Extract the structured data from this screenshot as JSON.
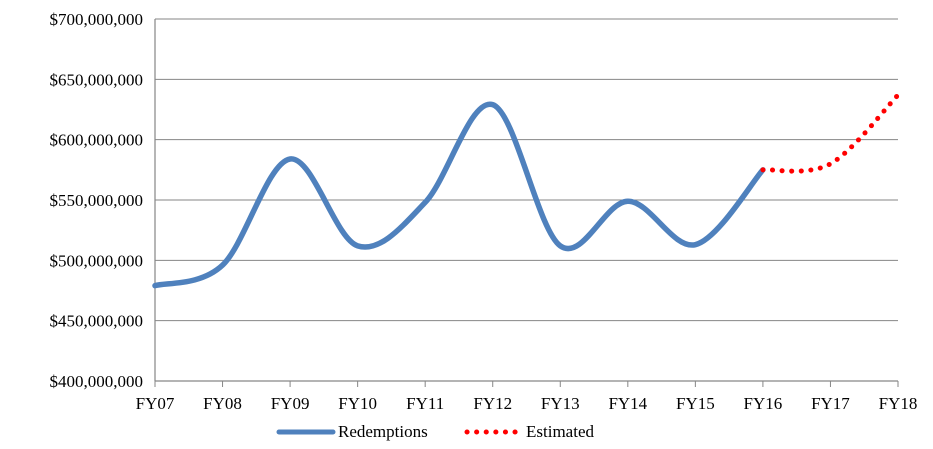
{
  "chart_data": {
    "type": "line",
    "categories": [
      "FY07",
      "FY08",
      "FY09",
      "FY10",
      "FY11",
      "FY12",
      "FY13",
      "FY14",
      "FY15",
      "FY16",
      "FY17",
      "FY18"
    ],
    "y_ticks": [
      "$400,000,000",
      "$450,000,000",
      "$500,000,000",
      "$550,000,000",
      "$600,000,000",
      "$650,000,000",
      "$700,000,000"
    ],
    "y_tick_values": [
      400000000,
      450000000,
      500000000,
      550000000,
      600000000,
      650000000,
      700000000
    ],
    "ylim": [
      400000000,
      700000000
    ],
    "grid": "horizontal",
    "legend_position": "bottom",
    "series": [
      {
        "name": "Redemptions",
        "style": "solid",
        "color": "#4f81bd",
        "x": [
          "FY07",
          "FY08",
          "FY09",
          "FY10",
          "FY11",
          "FY12",
          "FY13",
          "FY14",
          "FY15",
          "FY16"
        ],
        "values": [
          479000000,
          496000000,
          584000000,
          512000000,
          548000000,
          629000000,
          512000000,
          549000000,
          513000000,
          575000000
        ]
      },
      {
        "name": "Estimated",
        "style": "dotted",
        "color": "#ff0000",
        "x": [
          "FY16",
          "FY17",
          "FY18"
        ],
        "values": [
          575000000,
          580000000,
          637000000
        ]
      }
    ]
  }
}
